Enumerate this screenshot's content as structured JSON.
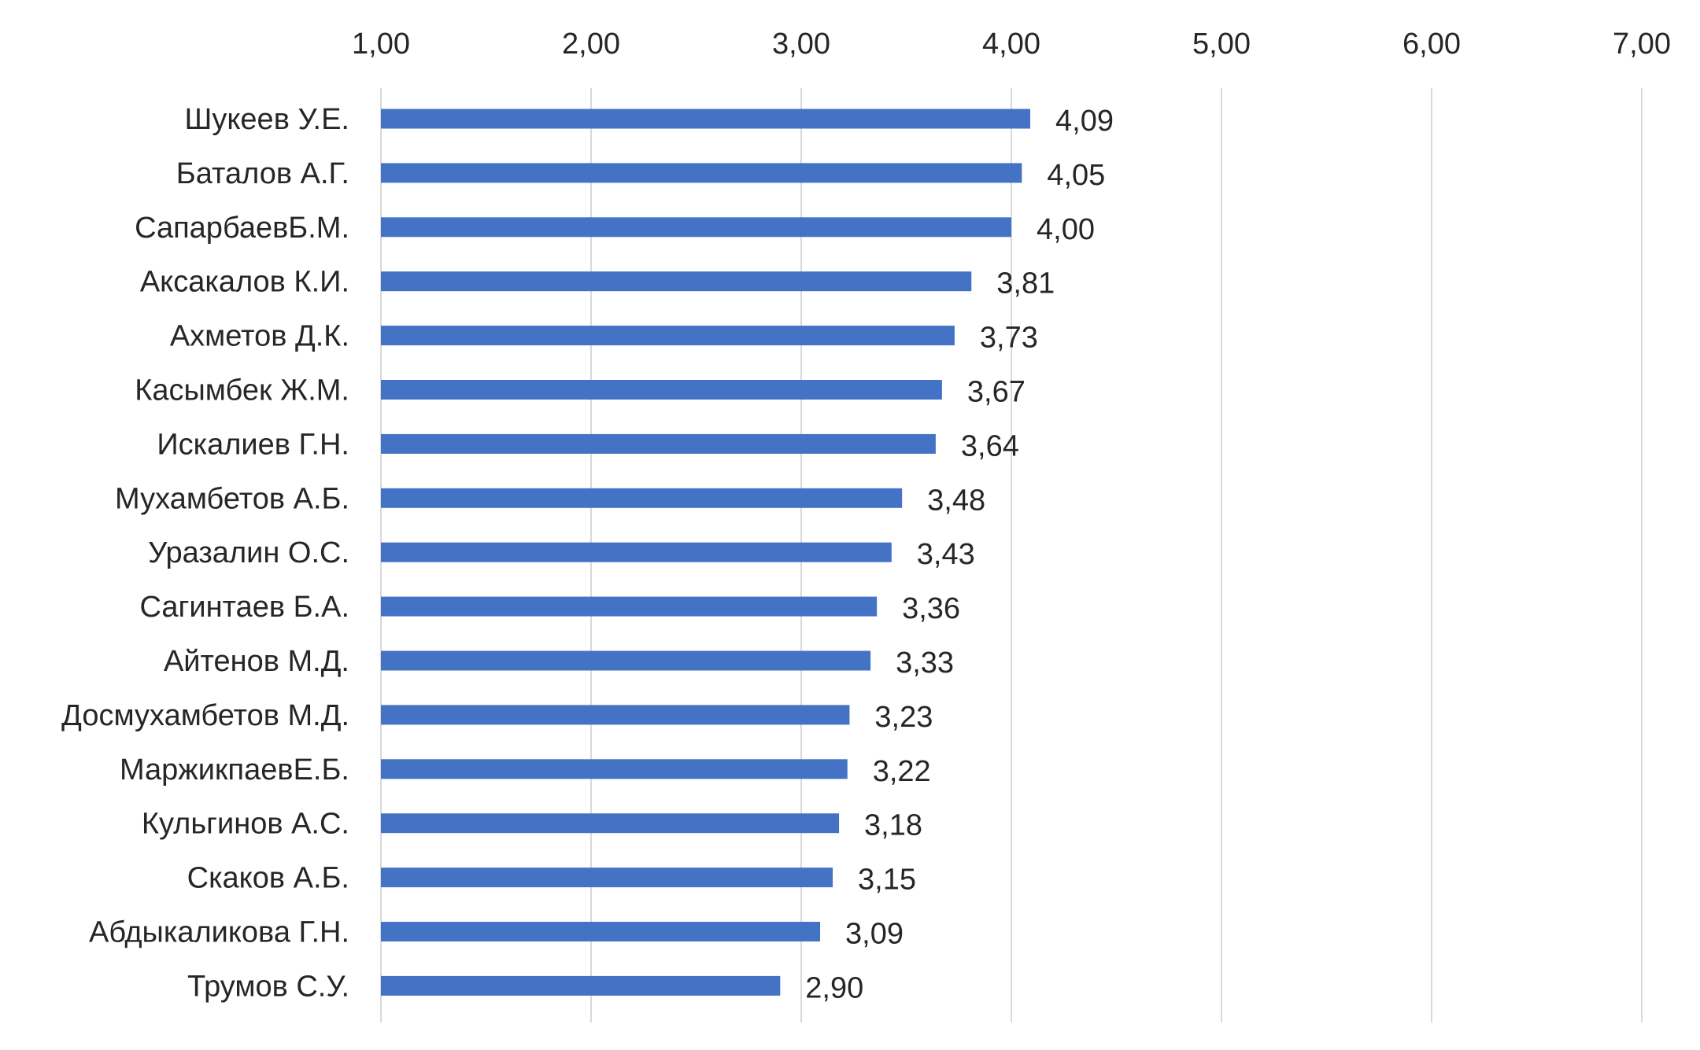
{
  "chart_data": {
    "type": "bar",
    "orientation": "horizontal",
    "xlim": [
      1,
      7
    ],
    "x_ticks": [
      "1,00",
      "2,00",
      "3,00",
      "4,00",
      "5,00",
      "6,00",
      "7,00"
    ],
    "x_axis_position": "top",
    "grid": true,
    "bar_color": "#4472C4",
    "categories": [
      "Шукеев У.Е.",
      "Баталов А.Г.",
      "СапарбаевБ.М.",
      "Аксакалов К.И.",
      "Ахметов Д.К.",
      "Касымбек Ж.М.",
      "Искалиев Г.Н.",
      "Мухамбетов А.Б.",
      "Уразалин О.С.",
      "Сагинтаев Б.А.",
      "Айтенов М.Д.",
      "Досмухамбетов М.Д.",
      "МаржикпаевЕ.Б.",
      "Кульгинов А.С.",
      "Скаков А.Б.",
      "Абдыкаликова Г.Н.",
      "Трумов С.У."
    ],
    "values": [
      4.09,
      4.05,
      4.0,
      3.81,
      3.73,
      3.67,
      3.64,
      3.48,
      3.43,
      3.36,
      3.33,
      3.23,
      3.22,
      3.18,
      3.15,
      3.09,
      2.9
    ],
    "data_labels": [
      "4,09",
      "4,05",
      "4,00",
      "3,81",
      "3,73",
      "3,67",
      "3,64",
      "3,48",
      "3,43",
      "3,36",
      "3,33",
      "3,23",
      "3,22",
      "3,18",
      "3,15",
      "3,09",
      "2,90"
    ]
  }
}
